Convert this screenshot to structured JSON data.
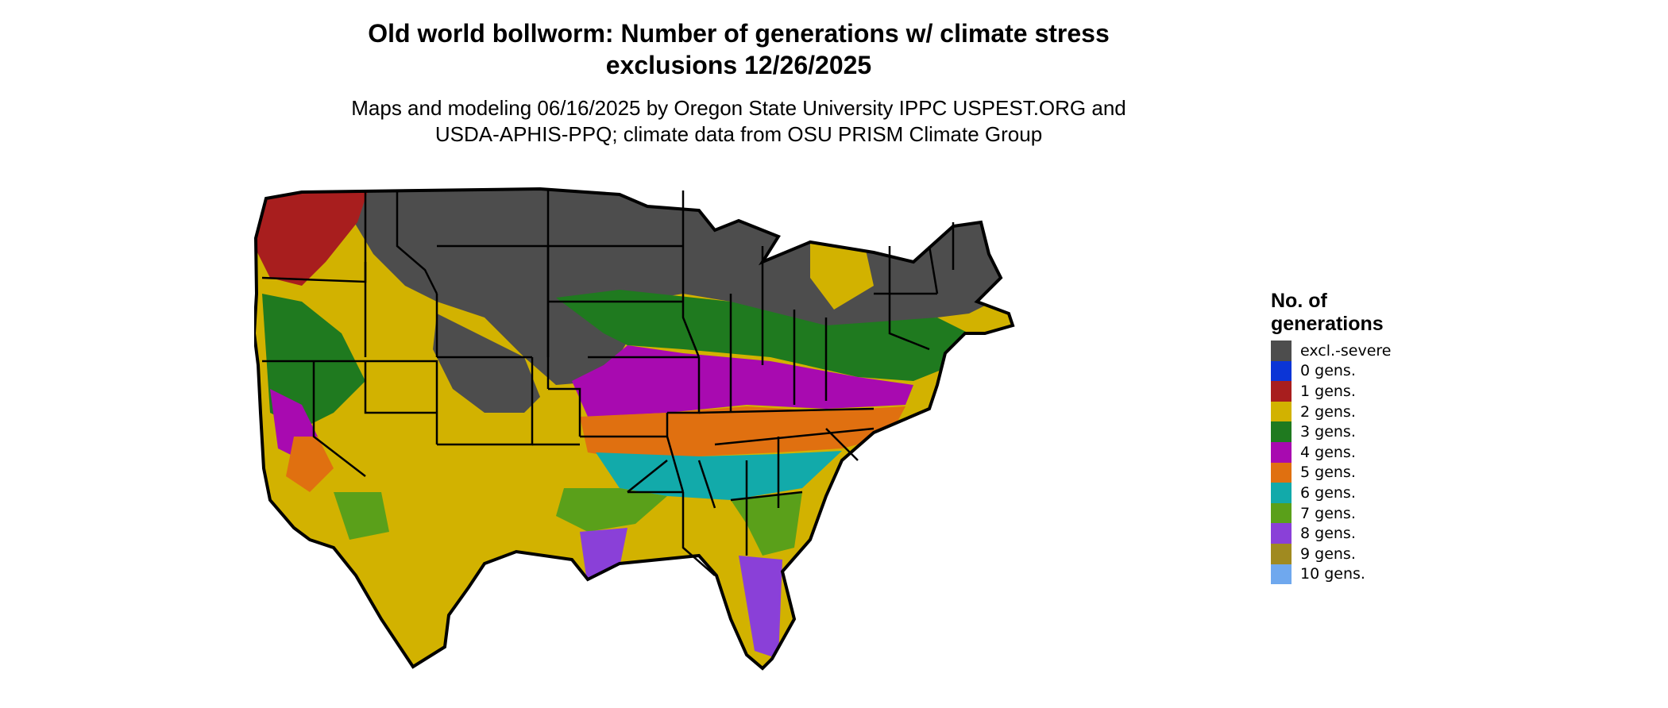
{
  "header": {
    "title_line1": "Old world bollworm: Number of generations w/ climate stress",
    "title_line2": "exclusions 12/26/2025",
    "subtitle_line1": "Maps and modeling 06/16/2025 by Oregon State University IPPC USPEST.ORG and",
    "subtitle_line2": "USDA-APHIS-PPQ; climate data from OSU PRISM Climate Group"
  },
  "legend": {
    "title_line1": "No. of",
    "title_line2": "generations",
    "items": [
      {
        "label": "excl.-severe",
        "color": "#4d4d4d"
      },
      {
        "label": "0 gens.",
        "color": "#0b35d6"
      },
      {
        "label": "1 gens.",
        "color": "#a81e1e"
      },
      {
        "label": "2 gens.",
        "color": "#d2b200"
      },
      {
        "label": "3 gens.",
        "color": "#1f7a1f"
      },
      {
        "label": "4 gens.",
        "color": "#a80ab0"
      },
      {
        "label": "5 gens.",
        "color": "#e07010"
      },
      {
        "label": "6 gens.",
        "color": "#12aaaa"
      },
      {
        "label": "7 gens.",
        "color": "#5aa01a"
      },
      {
        "label": "8 gens.",
        "color": "#8a40d8"
      },
      {
        "label": "9 gens.",
        "color": "#a08a20"
      },
      {
        "label": "10 gens.",
        "color": "#6fa8ee"
      }
    ]
  }
}
